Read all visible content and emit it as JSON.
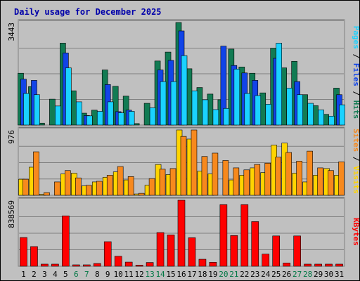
{
  "chart_data": {
    "type": "bar",
    "title": "Daily usage for December 2025",
    "days": [
      "1",
      "2",
      "3",
      "4",
      "5",
      "6",
      "7",
      "8",
      "9",
      "10",
      "11",
      "12",
      "13",
      "14",
      "15",
      "16",
      "17",
      "18",
      "19",
      "20",
      "21",
      "22",
      "23",
      "24",
      "25",
      "26",
      "27",
      "28",
      "29",
      "30",
      "31"
    ],
    "weekend_days": [
      "6",
      "7",
      "13",
      "14",
      "20",
      "21",
      "27",
      "28"
    ],
    "panels": [
      {
        "id": "top",
        "max_label": "3443",
        "ylim": [
          0,
          3443
        ],
        "right_label": [
          "Pages",
          "Files",
          "Hits"
        ],
        "series": [
          {
            "name": "Hits",
            "color": "#127b53",
            "values": [
              1740,
              1290,
              65,
              870,
              2750,
              1150,
              400,
              500,
              1850,
              1300,
              970,
              50,
              730,
              2150,
              2450,
              3443,
              1890,
              1260,
              1040,
              850,
              2550,
              1950,
              1740,
              1080,
              2580,
              1920,
              2140,
              1020,
              650,
              360,
              1240
            ]
          },
          {
            "name": "Files",
            "color": "#1144e8",
            "values": [
              1540,
              1500,
              0,
              0,
              2420,
              0,
              320,
              0,
              1360,
              450,
              500,
              0,
              0,
              1850,
              2170,
              3160,
              0,
              0,
              0,
              2650,
              2000,
              1750,
              1500,
              0,
              2240,
              0,
              1460,
              0,
              0,
              0,
              1020
            ]
          },
          {
            "name": "Pages",
            "color": "#1ad2ff",
            "values": [
              1060,
              1020,
              0,
              640,
              1920,
              780,
              310,
              460,
              780,
              410,
              460,
              0,
              580,
              1460,
              1460,
              2330,
              1150,
              850,
              520,
              560,
              1880,
              1060,
              990,
              700,
              2750,
              1240,
              1020,
              730,
              510,
              300,
              680
            ]
          }
        ]
      },
      {
        "id": "mid",
        "max_label": "976",
        "ylim": [
          0,
          976
        ],
        "right_label": [
          "Sites",
          "Visits"
        ],
        "series": [
          {
            "name": "Visits",
            "color": "#ffd400",
            "values": [
              240,
              420,
              15,
              0,
              320,
              330,
              140,
              200,
              270,
              350,
              230,
              20,
              150,
              460,
              310,
              976,
              840,
              360,
              320,
              0,
              230,
              300,
              410,
              340,
              750,
              780,
              330,
              200,
              300,
              400,
              300
            ]
          },
          {
            "name": "Sites",
            "color": "#f7891d",
            "values": [
              240,
              650,
              40,
              200,
              370,
              260,
              150,
              210,
              300,
              430,
              280,
              30,
              250,
              390,
              400,
              880,
              976,
              580,
              630,
              520,
              410,
              380,
              460,
              480,
              570,
              640,
              510,
              660,
              410,
              370,
              500
            ]
          }
        ]
      },
      {
        "id": "bot",
        "max_label": "838569",
        "ylim": [
          0,
          838569
        ],
        "right_label": [
          "KBytes"
        ],
        "series": [
          {
            "name": "KBytes",
            "color": "#ff0000",
            "values": [
              365000,
              250000,
              27000,
              27000,
              640000,
              18000,
              18000,
              35000,
              312000,
              127000,
              53000,
              15000,
              48000,
              428000,
              398000,
              838569,
              362000,
              89000,
              51000,
              782000,
              390000,
              782000,
              567000,
              154000,
              385000,
              42000,
              385000,
              27000,
              27000,
              27000,
              27000
            ]
          }
        ]
      }
    ]
  }
}
